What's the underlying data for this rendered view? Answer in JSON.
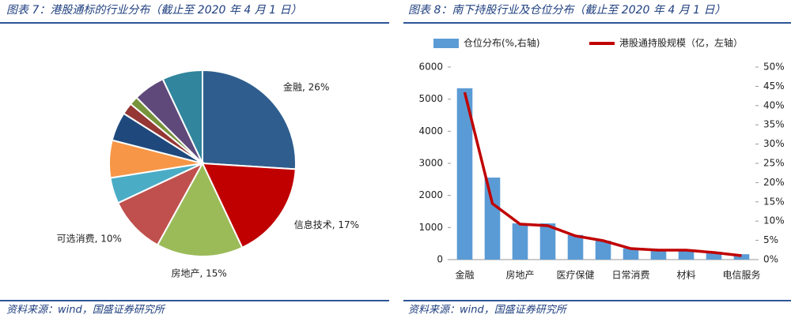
{
  "chart_data": [
    {
      "type": "pie",
      "title": "图表 7：港股通标的行业分布（截止至 2020 年 4 月 1 日）",
      "values": [
        26,
        17,
        15,
        10,
        4.5,
        6.5,
        5,
        2,
        1.5,
        5.5,
        7
      ],
      "value_labels": [
        "金融, 26%",
        "信息技术, 17%",
        "房地产, 15%",
        "可选消费, 10%",
        null,
        null,
        null,
        null,
        null,
        null,
        null
      ],
      "colors": [
        "#2f5e8e",
        "#c00000",
        "#9bbb59",
        "#c0504d",
        "#4bacc6",
        "#f79646",
        "#1f497d",
        "#953735",
        "#77933c",
        "#5f497a",
        "#31859c"
      ],
      "source": "资料来源：wind，国盛证券研究所"
    },
    {
      "type": "bar_line",
      "title": "图表 8：南下持股行业及仓位分布（截止至 2020 年 4 月 1 日）",
      "categories": [
        "金融",
        null,
        "房地产",
        null,
        "医疗保健",
        null,
        "日常消费",
        null,
        "材料",
        null,
        "电信服务"
      ],
      "series": [
        {
          "name": "仓位分布(%,右轴)",
          "kind": "bar",
          "color": "#5b9bd5",
          "axis": "y2",
          "values": [
            44.5,
            21.3,
            9.4,
            9.4,
            6.4,
            4.9,
            2.9,
            2.5,
            2.5,
            2.0,
            1.4
          ]
        },
        {
          "name": "港股通持股规模（亿，左轴）",
          "kind": "line",
          "color": "#c00000",
          "values": [
            5213,
            1746,
            1107,
            1058,
            738,
            590,
            344,
            295,
            295,
            221,
            123
          ]
        }
      ],
      "ylim": [
        0,
        6000
      ],
      "yticks": [
        0,
        1000,
        2000,
        3000,
        4000,
        5000,
        6000
      ],
      "y2lim": [
        0,
        50
      ],
      "y2ticks": [
        {
          "value": 0,
          "label": "0%"
        },
        {
          "value": 5,
          "label": "5%"
        },
        {
          "value": 10,
          "label": "10%"
        },
        {
          "value": 15,
          "label": "15%"
        },
        {
          "value": 20,
          "label": "20%"
        },
        {
          "value": 25,
          "label": "25%"
        },
        {
          "value": 30,
          "label": "30%"
        },
        {
          "value": 35,
          "label": "35%"
        },
        {
          "value": 40,
          "label": "40%"
        },
        {
          "value": 45,
          "label": "45%"
        },
        {
          "value": 50,
          "label": "50%"
        }
      ],
      "source": "资料来源：wind，国盛证券研究所"
    }
  ]
}
